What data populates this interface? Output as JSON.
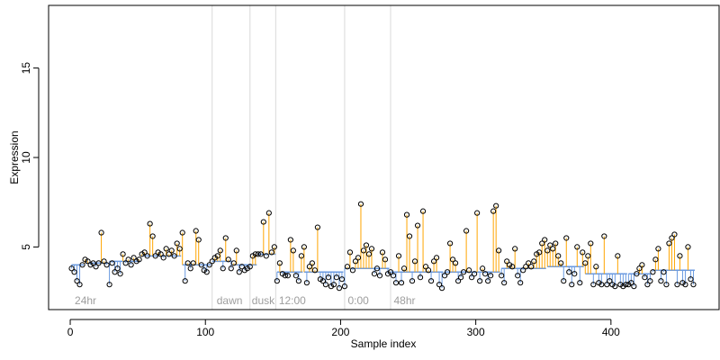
{
  "chart_data": {
    "type": "scatter",
    "title": "",
    "xlabel": "Sample index",
    "ylabel": "Expression",
    "xlim": [
      -16,
      480
    ],
    "ylim": [
      1.5,
      18.5
    ],
    "x_ticks": [
      0,
      100,
      200,
      300,
      400
    ],
    "x_tick_labels": [
      "0",
      "100",
      "200",
      "300",
      "400"
    ],
    "y_ticks": [
      5,
      10,
      15
    ],
    "y_tick_labels": [
      "5",
      "10",
      "15"
    ],
    "grid": false,
    "legend": "none",
    "colors": {
      "above_baseline": "#ffa500",
      "below_baseline": "#6a9ae0",
      "point_edge": "#000000",
      "divider": "#d9d9d9",
      "annotation": "#9e9e9e"
    },
    "dividers_x": [
      105,
      133,
      152,
      203,
      237
    ],
    "annotations": [
      {
        "text": "24hr",
        "x": 2
      },
      {
        "text": "dawn",
        "x": 107
      },
      {
        "text": "dusk",
        "x": 133
      },
      {
        "text": "12:00",
        "x": 153
      },
      {
        "text": "0:00",
        "x": 204
      },
      {
        "text": "48hr",
        "x": 238
      }
    ],
    "baseline_segments": [
      {
        "x_start": 1,
        "x_end": 10,
        "y": 4.0
      },
      {
        "x_start": 11,
        "x_end": 28,
        "y": 4.1
      },
      {
        "x_start": 29,
        "x_end": 52,
        "y": 4.2
      },
      {
        "x_start": 53,
        "x_end": 82,
        "y": 4.5
      },
      {
        "x_start": 83,
        "x_end": 104,
        "y": 4.0
      },
      {
        "x_start": 105,
        "x_end": 120,
        "y": 4.2
      },
      {
        "x_start": 121,
        "x_end": 138,
        "y": 4.0
      },
      {
        "x_start": 139,
        "x_end": 152,
        "y": 4.6
      },
      {
        "x_start": 153,
        "x_end": 172,
        "y": 3.6
      },
      {
        "x_start": 173,
        "x_end": 202,
        "y": 3.6
      },
      {
        "x_start": 203,
        "x_end": 236,
        "y": 3.8
      },
      {
        "x_start": 237,
        "x_end": 276,
        "y": 3.6
      },
      {
        "x_start": 277,
        "x_end": 318,
        "y": 3.6
      },
      {
        "x_start": 319,
        "x_end": 352,
        "y": 3.8
      },
      {
        "x_start": 353,
        "x_end": 380,
        "y": 3.9
      },
      {
        "x_start": 381,
        "x_end": 412,
        "y": 3.5
      },
      {
        "x_start": 413,
        "x_end": 430,
        "y": 3.5
      },
      {
        "x_start": 431,
        "x_end": 462,
        "y": 3.7
      }
    ],
    "series": [
      {
        "x": [
          1,
          3,
          5,
          7,
          9,
          11,
          13,
          15,
          17,
          19,
          21,
          23,
          25,
          27,
          29,
          31,
          33,
          35,
          37,
          39,
          41,
          43,
          45,
          47,
          49,
          51,
          53,
          55,
          57,
          59,
          61,
          63,
          65,
          67,
          69,
          71,
          73,
          75,
          77,
          79,
          81,
          83,
          85,
          87,
          89,
          91,
          93,
          95,
          97,
          99,
          101,
          103,
          105,
          107,
          109,
          111,
          113,
          115,
          117,
          119,
          121,
          123,
          125,
          127,
          129,
          131,
          133,
          135,
          137,
          139,
          141,
          143,
          145,
          147,
          149,
          151,
          153,
          155,
          157,
          159,
          161,
          163,
          165,
          167,
          169,
          171,
          173,
          175,
          177,
          179,
          181,
          183,
          185,
          187,
          189,
          191,
          193,
          195,
          197,
          199,
          201,
          203,
          205,
          207,
          209,
          211,
          213,
          215,
          217,
          219,
          221,
          223,
          225,
          227,
          229,
          231,
          233,
          235,
          237,
          239,
          241,
          243,
          245,
          247,
          249,
          251,
          253,
          255,
          257,
          259,
          261,
          263,
          265,
          267,
          269,
          271,
          273,
          275,
          277,
          279,
          281,
          283,
          285,
          287,
          289,
          291,
          293,
          295,
          297,
          299,
          301,
          303,
          305,
          307,
          309,
          311,
          313,
          315,
          317,
          319,
          321,
          323,
          325,
          327,
          329,
          331,
          333,
          335,
          337,
          339,
          341,
          343,
          345,
          347,
          349,
          351,
          353,
          355,
          357,
          359,
          361,
          363,
          365,
          367,
          369,
          371,
          373,
          375,
          377,
          379,
          381,
          383,
          385,
          387,
          389,
          391,
          393,
          395,
          397,
          399,
          401,
          403,
          405,
          407,
          409,
          411,
          413,
          415,
          417,
          419,
          421,
          423,
          425,
          427,
          429,
          431,
          433,
          435,
          437,
          439,
          441,
          443,
          445,
          447,
          449,
          451,
          453,
          455,
          457,
          459,
          461
        ],
        "y": [
          3.8,
          3.6,
          3.1,
          2.9,
          4.0,
          4.3,
          4.2,
          4.0,
          4.1,
          3.9,
          4.1,
          5.8,
          4.2,
          4.0,
          2.9,
          4.1,
          3.6,
          3.8,
          3.5,
          4.6,
          4.1,
          4.3,
          4.0,
          4.4,
          4.2,
          4.3,
          4.6,
          4.7,
          4.5,
          6.3,
          5.6,
          4.5,
          4.7,
          4.6,
          4.4,
          4.9,
          4.6,
          4.8,
          4.5,
          5.2,
          4.9,
          5.8,
          3.1,
          4.1,
          3.8,
          4.1,
          5.9,
          5.4,
          4.0,
          3.7,
          3.6,
          4.0,
          4.2,
          4.4,
          4.5,
          4.8,
          3.8,
          5.5,
          4.3,
          3.8,
          4.1,
          4.8,
          3.6,
          3.9,
          3.7,
          3.8,
          3.9,
          4.5,
          4.6,
          4.6,
          4.6,
          6.4,
          4.5,
          6.9,
          4.7,
          5.0,
          3.1,
          4.1,
          3.5,
          3.4,
          3.4,
          5.4,
          4.8,
          3.4,
          3.1,
          4.5,
          5.0,
          3.0,
          3.9,
          4.1,
          3.7,
          6.1,
          3.2,
          3.1,
          2.9,
          3.3,
          2.8,
          2.9,
          3.3,
          2.7,
          3.2,
          2.8,
          3.9,
          4.7,
          3.7,
          4.2,
          4.4,
          7.4,
          4.8,
          5.1,
          4.6,
          4.9,
          3.5,
          3.8,
          3.4,
          4.7,
          4.3,
          3.5,
          3.6,
          3.4,
          3.0,
          4.5,
          3.0,
          3.8,
          6.8,
          5.6,
          3.1,
          4.2,
          6.2,
          3.3,
          7.0,
          3.9,
          3.7,
          3.1,
          4.2,
          4.4,
          2.9,
          2.7,
          3.4,
          3.6,
          5.2,
          4.3,
          4.1,
          3.1,
          3.3,
          3.6,
          5.9,
          3.7,
          3.3,
          3.5,
          6.9,
          3.1,
          3.8,
          3.5,
          3.1,
          3.4,
          7.0,
          7.3,
          4.8,
          3.4,
          3.0,
          4.2,
          4.0,
          3.9,
          4.9,
          3.4,
          3.0,
          3.7,
          3.9,
          4.1,
          3.9,
          4.2,
          4.6,
          4.7,
          5.2,
          5.4,
          4.8,
          5.1,
          4.9,
          5.2,
          4.5,
          4.1,
          3.1,
          5.5,
          3.6,
          2.9,
          3.5,
          5.0,
          3.0,
          4.7,
          4.1,
          4.5,
          5.2,
          2.9,
          3.9,
          3.0,
          2.9,
          5.6,
          2.9,
          3.1,
          2.9,
          2.8,
          4.5,
          2.9,
          2.8,
          2.9,
          2.9,
          3.0,
          2.8,
          3.5,
          3.8,
          4.0,
          3.3,
          2.9,
          3.1,
          3.6,
          4.3,
          4.9,
          3.1,
          3.6,
          2.9,
          5.2,
          5.5,
          5.7,
          2.9,
          4.5,
          3.0,
          2.9,
          5.0,
          3.2,
          2.9
        ]
      }
    ]
  }
}
